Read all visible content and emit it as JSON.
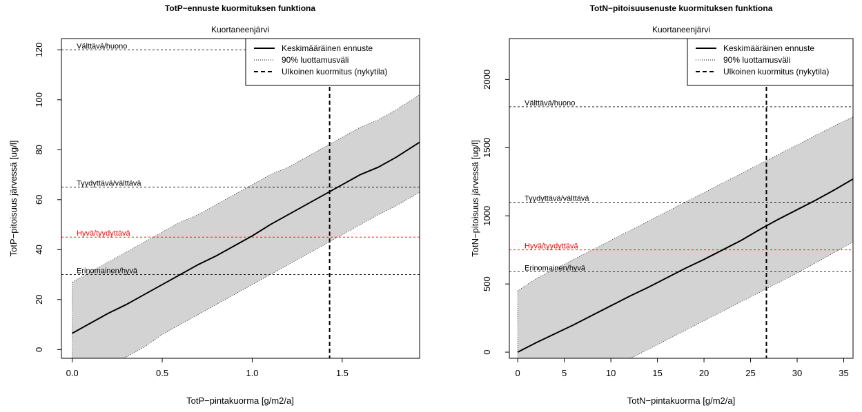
{
  "chart_data": [
    {
      "type": "line",
      "title": "TotP−ennuste kuormituksen funktiona",
      "subtitle": "Kuortaneenjärvi",
      "xlabel": "TotP−pintakuorma [g/m2/a]",
      "ylabel": "TotP−pitoisuus järvessä [ug/l]",
      "xlim": [
        -0.06,
        1.93
      ],
      "ylim": [
        -3.5,
        124.5
      ],
      "xticks": [
        0.0,
        0.5,
        1.0,
        1.5
      ],
      "xtick_labels": [
        "0.0",
        "0.5",
        "1.0",
        "1.5"
      ],
      "yticks": [
        0,
        20,
        40,
        60,
        80,
        100,
        120
      ],
      "ytick_labels": [
        "0",
        "20",
        "40",
        "60",
        "80",
        "100",
        "120"
      ],
      "legend": {
        "position": "top-right",
        "entries": [
          "Keskimääräinen ennuste",
          "90% luottamusväli",
          "Ulkoinen kuormitus (nykytila)"
        ]
      },
      "thresholds": [
        {
          "label": "Välttävä/huono",
          "value": 120,
          "color": "#000000"
        },
        {
          "label": "Tyydyttävä/välttävä",
          "value": 65,
          "color": "#000000"
        },
        {
          "label": "Hyvä/tyydyttävä",
          "value": 45,
          "color": "#ff0000"
        },
        {
          "label": "Erinomainen/hyvä",
          "value": 30,
          "color": "#000000"
        }
      ],
      "current_load": 1.43,
      "series": [
        {
          "name": "Keskimääräinen ennuste",
          "x": [
            0,
            0.1,
            0.2,
            0.3,
            0.4,
            0.5,
            0.6,
            0.7,
            0.8,
            0.9,
            1.0,
            1.1,
            1.2,
            1.3,
            1.4,
            1.5,
            1.6,
            1.7,
            1.8,
            1.93
          ],
          "y": [
            6.5,
            10.5,
            14.5,
            18,
            22,
            26,
            30,
            34,
            37.5,
            41.5,
            45.5,
            50,
            54,
            58,
            62,
            66,
            70,
            73,
            77,
            83
          ]
        },
        {
          "name": "90% luottamusväli",
          "x": [
            0,
            0.1,
            0.2,
            0.3,
            0.4,
            0.5,
            0.6,
            0.7,
            0.8,
            0.9,
            1.0,
            1.1,
            1.2,
            1.3,
            1.4,
            1.5,
            1.6,
            1.7,
            1.8,
            1.93
          ],
          "lower": [
            -13,
            -10,
            -7,
            -3,
            1,
            6,
            10,
            14,
            18,
            22,
            26,
            30,
            34,
            38,
            42,
            46,
            50,
            54,
            57.5,
            63
          ],
          "upper": [
            27,
            31,
            35,
            39,
            43,
            47,
            51,
            54,
            58,
            62,
            66,
            70,
            73,
            77,
            81,
            85,
            89,
            92,
            96,
            102
          ]
        }
      ]
    },
    {
      "type": "line",
      "title": "TotN−pitoisuusenuste kuormituksen funktiona",
      "subtitle": "Kuortaneenjärvi",
      "xlabel": "TotN−pintakuorma [g/m2/a]",
      "ylabel": "TotN−pitoisuus järvessä [ug/l]",
      "xlim": [
        -0.9,
        36.0
      ],
      "ylim": [
        -45,
        2300
      ],
      "xticks": [
        0,
        5,
        10,
        15,
        20,
        25,
        30,
        35
      ],
      "xtick_labels": [
        "0",
        "5",
        "10",
        "15",
        "20",
        "25",
        "30",
        "35"
      ],
      "yticks": [
        0,
        500,
        1000,
        1500,
        2000
      ],
      "ytick_labels": [
        "0",
        "500",
        "1000",
        "1500",
        "2000"
      ],
      "legend": {
        "position": "top-right",
        "entries": [
          "Keskimääräinen ennuste",
          "90% luottamusväli",
          "Ulkoinen kuormitus (nykytila)"
        ]
      },
      "thresholds": [
        {
          "label": "Välttävä/huono",
          "value": 1800,
          "color": "#000000"
        },
        {
          "label": "Tyydyttävä/välttävä",
          "value": 1100,
          "color": "#000000"
        },
        {
          "label": "Hyvä/tyydyttävä",
          "value": 750,
          "color": "#ff0000"
        },
        {
          "label": "Erinomainen/hyvä",
          "value": 590,
          "color": "#000000"
        }
      ],
      "current_load": 26.7,
      "series": [
        {
          "name": "Keskimääräinen ennuste",
          "x": [
            0,
            2,
            4,
            6,
            8,
            10,
            12,
            14,
            16,
            18,
            20,
            22,
            24,
            26,
            28,
            30,
            32,
            34,
            36
          ],
          "y": [
            0,
            70,
            135,
            200,
            270,
            340,
            410,
            475,
            545,
            615,
            680,
            750,
            820,
            900,
            975,
            1045,
            1115,
            1190,
            1270
          ]
        },
        {
          "name": "90% luottamusväli",
          "x": [
            0,
            2,
            4,
            6,
            8,
            10,
            12,
            14,
            16,
            18,
            20,
            22,
            24,
            26,
            28,
            30,
            32,
            34,
            36
          ],
          "lower": [
            -470,
            -400,
            -330,
            -260,
            -190,
            -120,
            -50,
            20,
            90,
            160,
            230,
            300,
            370,
            440,
            510,
            580,
            655,
            730,
            810
          ],
          "upper": [
            450,
            540,
            610,
            680,
            750,
            820,
            890,
            960,
            1030,
            1100,
            1170,
            1240,
            1310,
            1380,
            1450,
            1520,
            1590,
            1660,
            1725
          ]
        }
      ]
    }
  ]
}
